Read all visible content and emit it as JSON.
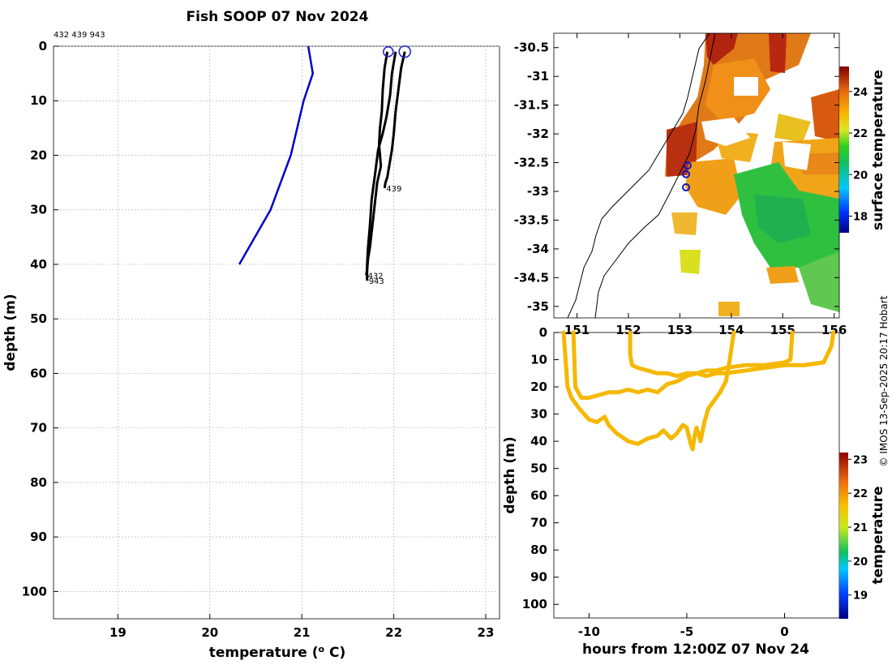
{
  "title": "Fish SOOP 07 Nov 2024",
  "credit": "© IMOS 13-Sep-2025 20:17 Hobart",
  "chart_data": [
    {
      "type": "line",
      "id": "profiles",
      "id_list": "432 439 943",
      "xlabel_main": "temperature (",
      "xlabel_sup": "o",
      "xlabel_end": " C)",
      "ylabel": "depth (m)",
      "xlim": [
        18.3,
        23.15
      ],
      "ylim": [
        105,
        0
      ],
      "xticks": [
        19,
        20,
        21,
        22,
        23
      ],
      "yticks": [
        0,
        10,
        20,
        30,
        40,
        50,
        60,
        70,
        80,
        90,
        100
      ],
      "grid": true,
      "climatology": {
        "x": [
          21.07,
          21.12,
          21.02,
          20.88,
          20.66,
          20.32
        ],
        "y": [
          0,
          5,
          10,
          20,
          30,
          40
        ]
      },
      "series": [
        {
          "label": "432",
          "x": [
            21.93,
            21.9,
            21.88,
            21.87,
            21.85,
            21.84,
            21.86,
            21.82,
            21.8,
            21.78,
            21.76,
            21.74,
            21.72,
            21.71,
            21.7
          ],
          "y": [
            1,
            4,
            8,
            12,
            15,
            18,
            22,
            25,
            28,
            31,
            34,
            37,
            39,
            41,
            42
          ]
        },
        {
          "label": "439",
          "x": [
            22.12,
            22.08,
            22.05,
            22.02,
            22.0,
            21.98,
            21.95,
            21.93,
            21.91,
            21.9
          ],
          "y": [
            1,
            4,
            8,
            12,
            16,
            19,
            22,
            24,
            25,
            26
          ]
        },
        {
          "label": "943",
          "x": [
            22.02,
            21.98,
            21.96,
            21.92,
            21.88,
            21.83,
            21.8,
            21.76,
            21.74,
            21.72,
            21.71,
            21.71
          ],
          "y": [
            1,
            5,
            9,
            13,
            16,
            19,
            23,
            28,
            33,
            37,
            40,
            43
          ]
        }
      ],
      "markers": [
        {
          "x": 21.94,
          "y": 1
        },
        {
          "x": 22.12,
          "y": 1
        }
      ]
    },
    {
      "type": "heatmap",
      "id": "sst_map",
      "colorbar_label": "surface temperature",
      "colorbar_ticks": [
        18,
        20,
        22,
        24
      ],
      "colorbar_range": [
        17.2,
        25.2
      ],
      "xlim": [
        150.55,
        156.1
      ],
      "ylim": [
        -35.2,
        -30.25
      ],
      "xticks": [
        151,
        152,
        153,
        154,
        155,
        156
      ],
      "xtick_labels": [
        "151",
        "152",
        "153",
        "154",
        "155",
        "156"
      ],
      "yticks": [
        -30.5,
        -31,
        -31.5,
        -32,
        -32.5,
        -33,
        -33.5,
        -34,
        -34.5,
        -35
      ],
      "ytick_labels": [
        "-30.5",
        "-31",
        "-31.5",
        "-32",
        "-32.5",
        "-33",
        "-33.5",
        "-34",
        "-34.5",
        "-35"
      ],
      "stations": [
        {
          "lon": 153.15,
          "lat": -32.55
        },
        {
          "lon": 153.12,
          "lat": -32.7
        },
        {
          "lon": 153.12,
          "lat": -32.93
        }
      ]
    },
    {
      "type": "scatter",
      "id": "depth_time",
      "xlabel": "hours from 12:00Z 07 Nov 24",
      "ylabel": "depth (m)",
      "colorbar_label": "temperature",
      "colorbar_ticks": [
        19,
        20,
        21,
        22,
        23
      ],
      "colorbar_range": [
        18.3,
        23.2
      ],
      "xlim": [
        -11.8,
        2.8
      ],
      "ylim": [
        105,
        0
      ],
      "xticks": [
        -10,
        -5,
        0
      ],
      "yticks": [
        0,
        10,
        20,
        30,
        40,
        50,
        60,
        70,
        80,
        90,
        100
      ],
      "tracks": [
        {
          "x": [
            -11.3,
            -11.2,
            -11.1,
            -10.9,
            -10.5,
            -10.0,
            -9.6,
            -9.2,
            -9.0,
            -8.6,
            -8.0,
            -7.5,
            -7.0,
            -6.5,
            -6.2,
            -5.8,
            -5.5,
            -5.2,
            -5.0,
            -4.8,
            -4.7,
            -4.6,
            -4.5,
            -4.3,
            -4.1,
            -3.9,
            -3.6,
            -3.3,
            -3.0,
            -2.8,
            -2.6
          ],
          "y": [
            0,
            10,
            20,
            24,
            28,
            32,
            33,
            31,
            34,
            37,
            40,
            41,
            39,
            38,
            36,
            39,
            37,
            34,
            35,
            41,
            43,
            38,
            35,
            40,
            33,
            28,
            25,
            22,
            18,
            10,
            0
          ]
        },
        {
          "x": [
            -10.8,
            -10.7,
            -10.4,
            -10.0,
            -9.5,
            -9.0,
            -8.5,
            -8.0,
            -7.5,
            -7.0,
            -6.5,
            -6.0,
            -5.5,
            -5.0,
            -4.5,
            -4.0,
            -3.5,
            -3.0,
            -2.0,
            -1.0,
            0.0,
            1.0,
            2.0,
            2.4,
            2.5
          ],
          "y": [
            0,
            20,
            24,
            24,
            23,
            22,
            22,
            21,
            22,
            21,
            22,
            19,
            18,
            16,
            15,
            16,
            15,
            15,
            14,
            13,
            12,
            12,
            11,
            5,
            0
          ]
        },
        {
          "x": [
            -7.9,
            -7.9,
            -7.8,
            -7.5,
            -7.0,
            -6.5,
            -6.0,
            -5.5,
            -5.0,
            -4.5,
            -4.0,
            -3.5,
            -3.0,
            -2.0,
            -1.0,
            0.0,
            0.3,
            0.4
          ],
          "y": [
            0,
            8,
            12,
            13,
            14,
            15,
            15,
            16,
            15,
            15,
            14,
            14,
            13,
            12,
            12,
            11,
            10,
            0
          ]
        }
      ]
    }
  ]
}
